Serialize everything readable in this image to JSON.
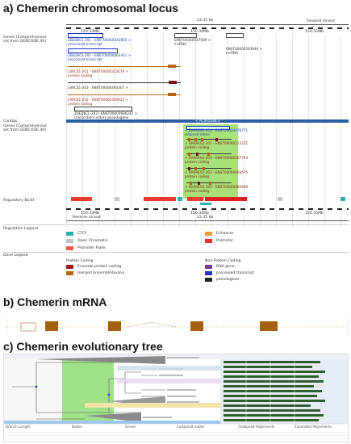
{
  "sections": {
    "a_title": "a) Chemerin chromosomal locus",
    "b_title": "b) Chemerin mRNA",
    "c_title": "c) Chemerin evolutionary tree"
  },
  "locus": {
    "top_scale_label": "23.35 kb",
    "forward_strand": "Forward strand",
    "reverse_strand": "Reverse strand",
    "bottom_scale_label": "23.35 kb",
    "ticks": [
      "150.33Mb",
      "150.34Mb",
      "150.35Mb"
    ],
    "genes_label_line1": "Genes (Comprehensive",
    "genes_label_line2": "set from GENCODE 40)",
    "contigs_label": "Contigs",
    "contig_name": "< AC005586.2",
    "regulatory_label": "Regulatory Build",
    "transcripts_fwd": [
      {
        "name": "ZBED6CL-201 - ENST00000343855 >",
        "type": "processed transcript"
      },
      {
        "name": "ZBED6CL-201 - ENST00000463441 >",
        "type": "processed transcript"
      },
      {
        "name": "LRRC61-201 - ENST00000323078 >",
        "type": "protein coding"
      },
      {
        "name": "LRRC61-203 - ENST00000493307 >",
        "type": ""
      },
      {
        "name": "LRRC61-202 - ENST00000359623 >",
        "type": "protein coding"
      },
      {
        "name": "ZBED6CL-203 - ENST00000696247 >",
        "type": "transcribed unitary pseudogene"
      }
    ],
    "lnc_1": {
      "name": "ENST00000647589 >",
      "type": "lncRNA"
    },
    "lnc_2": {
      "name": "ENST00000563946 >",
      "type": "lncRNA"
    },
    "transcripts_rev": [
      {
        "name": "< RARRES2-204 - ENST00000478771",
        "type": "retained intron"
      },
      {
        "name": "< RARRES2-201 - ENST00000223271",
        "type": "protein coding"
      },
      {
        "name": "< RARRES2-203 - ENST00000467793",
        "type": "protein coding"
      },
      {
        "name": "< RARRES2-202 - ENST00000466675",
        "type": "protein coding"
      },
      {
        "name": "< RARRES2-205 - ENST00000482669",
        "type": "protein coding"
      }
    ]
  },
  "legend": {
    "regulation_title": "Regulation Legend",
    "regulation_items": [
      {
        "label": "CTCF",
        "color": "#26b3a8"
      },
      {
        "label": "Enhancer",
        "color": "#f0a030"
      },
      {
        "label": "Open Chromatin",
        "color": "#c4c4c4"
      },
      {
        "label": "Promoter",
        "color": "#e83030"
      },
      {
        "label": "Promoter Flank",
        "color": "#ea5a4c"
      }
    ],
    "gene_title": "Gene Legend",
    "protein_coding_title": "Protein Coding",
    "protein_items": [
      {
        "label": "Ensembl protein coding",
        "color": "#9b1b1b"
      },
      {
        "label": "merged Ensembl/Havana",
        "color": "#b8640e"
      }
    ],
    "non_protein_title": "Non-Protein Coding",
    "non_protein_items": [
      {
        "label": "RNA gene",
        "color": "#7a3c8a"
      },
      {
        "label": "processed transcript",
        "color": "#2233cc"
      },
      {
        "label": "pseudogene",
        "color": "#222222"
      }
    ]
  },
  "tree": {
    "footer_headers": [
      "Branch Length",
      "Nodes",
      "Genes",
      "Collapsed nodes",
      "Collapsed Alignments",
      "Expanded Alignments"
    ]
  },
  "colors": {
    "accent_green": "#a8e07a",
    "tree_green": "#9fe28a",
    "contig_blue": "#2d5ea8",
    "exon_brown": "#a4600c"
  }
}
